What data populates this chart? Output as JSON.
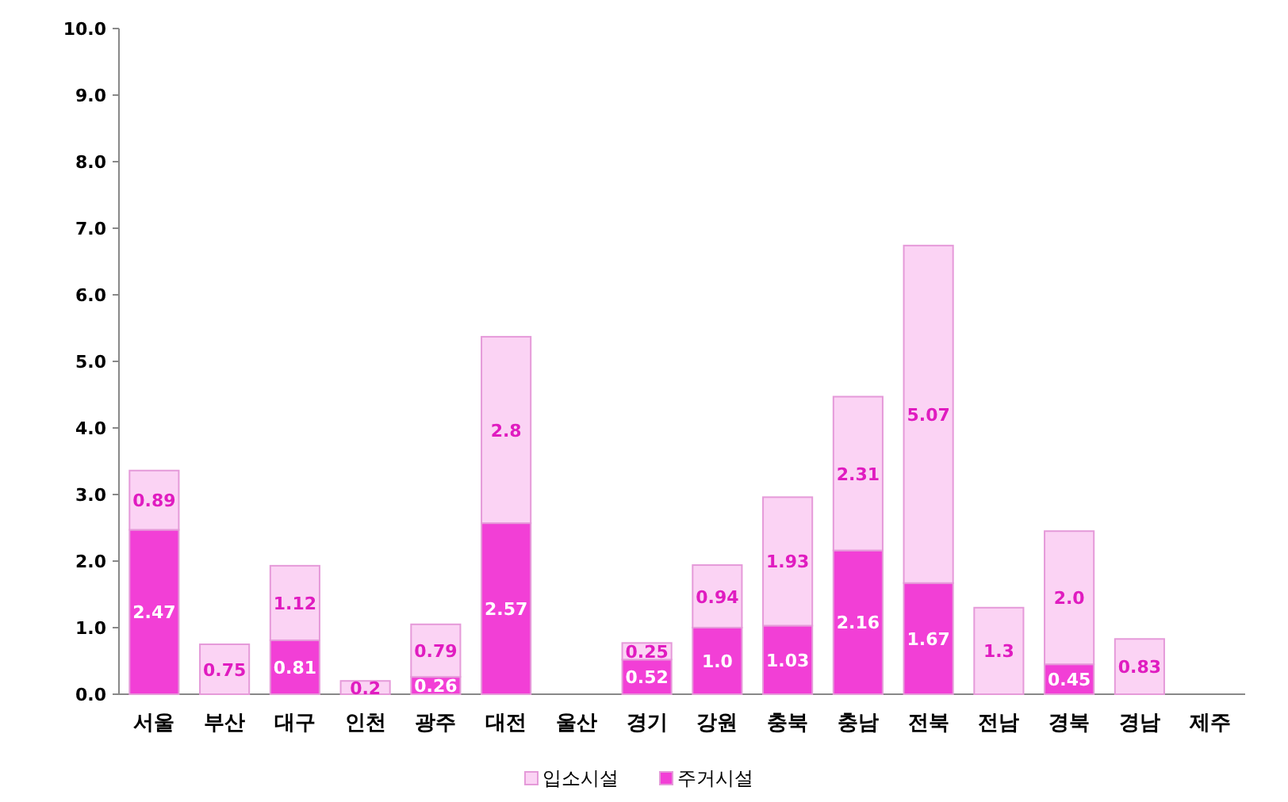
{
  "chart_data": {
    "type": "bar",
    "stacked": true,
    "legend": "bottom",
    "data_labels": false,
    "categories": [
      "서울",
      "부산",
      "대구",
      "인천",
      "광주",
      "대전",
      "울산",
      "경기",
      "강원",
      "충북",
      "충남",
      "전북",
      "전남",
      "경북",
      "경남",
      "제주"
    ],
    "series": [
      {
        "name": "주거시설",
        "color": "#f23fd6",
        "values": [
          2.47,
          null,
          0.81,
          null,
          0.26,
          2.57,
          null,
          0.52,
          1.0,
          1.03,
          2.16,
          1.67,
          null,
          0.45,
          null,
          null
        ],
        "value_labels": [
          "2.47",
          null,
          "0.81",
          null,
          "0.26",
          "2.57",
          null,
          "0.52",
          "1.0",
          "1.03",
          "2.16",
          "1.67",
          null,
          "0.45",
          null,
          null
        ]
      },
      {
        "name": "입소시설",
        "color": "#fbd3f4",
        "values": [
          0.89,
          0.75,
          1.12,
          0.2,
          0.79,
          2.8,
          null,
          0.25,
          0.94,
          1.93,
          2.31,
          5.07,
          1.3,
          2.0,
          0.83,
          null
        ],
        "value_labels": [
          "0.89",
          "0.75",
          "1.12",
          "0.2",
          "0.79",
          "2.8",
          null,
          "0.25",
          "0.94",
          "1.93",
          "2.31",
          "5.07",
          "1.3",
          "2.0",
          "0.83",
          null
        ]
      }
    ],
    "ylim": [
      0,
      10
    ],
    "yticks": [
      {
        "value": 0,
        "label": "0.0"
      },
      {
        "value": 1,
        "label": "1.0"
      },
      {
        "value": 2,
        "label": "2.0"
      },
      {
        "value": 3,
        "label": "3.0"
      },
      {
        "value": 4,
        "label": "4.0"
      },
      {
        "value": 5,
        "label": "5.0"
      },
      {
        "value": 6,
        "label": "6.0"
      },
      {
        "value": 7,
        "label": "7.0"
      },
      {
        "value": 8,
        "label": "8.0"
      },
      {
        "value": 9,
        "label": "9.0"
      },
      {
        "value": 10,
        "label": "10.0"
      }
    ]
  }
}
